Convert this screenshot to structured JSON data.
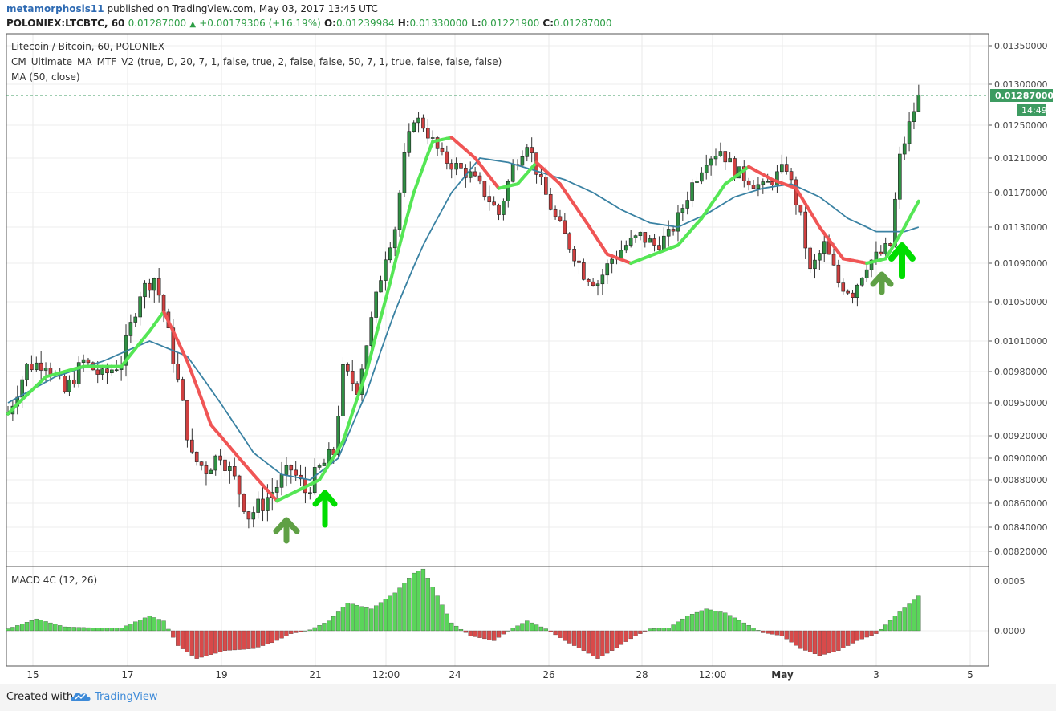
{
  "header": {
    "author": "metamorphosis11",
    "published_text": "published on TradingView.com, May 03, 2017 13:45 UTC",
    "symbol_line": "POLONIEX:LTCBTC, 60",
    "last_value": "0.01287000",
    "change": "+0.00179306 (+16.19%)",
    "open_label": "O:",
    "open_value": "0.01239984",
    "high_label": "H:",
    "high_value": "0.01330000",
    "low_label": "L:",
    "low_value": "0.01221900",
    "close_label": "C:",
    "close_value": "0.01287000"
  },
  "legend": {
    "line1": "Litecoin / Bitcoin, 60, POLONIEX",
    "line2": "CM_Ultimate_MA_MTF_V2 (true, D, 20, 7, 1, false, true, 2, false, false, 50, 7, 1, true, false, false, false)",
    "line3": "MA (50, close)"
  },
  "macd_label": "MACD 4C (12, 26)",
  "price_tag": {
    "value": "0.01287000",
    "countdown": "14:49"
  },
  "footer": {
    "created_with": "Created with",
    "brand": "TradingView"
  },
  "colors": {
    "bull_candle": "#2f8f43",
    "bear_candle": "#d04040",
    "ma_up": "#55e655",
    "ma_down": "#f05555",
    "ma50": "#3a82a3",
    "macd_pos": "#5ad55a",
    "macd_neg": "#d84a4a",
    "arrow_light": "#00dd00",
    "arrow_dark": "#5fa045",
    "price_tag_bg": "#3d9b61"
  },
  "chart_data": {
    "type": "candlestick",
    "xaxis_ticks": [
      "15",
      "17",
      "19",
      "21",
      "12:00",
      "24",
      "26",
      "28",
      "12:00",
      "May",
      "3",
      "5"
    ],
    "price_axis_ticks": [
      "0.01350000",
      "0.01300000",
      "0.01250000",
      "0.01210000",
      "0.01170000",
      "0.01130000",
      "0.01090000",
      "0.01050000",
      "0.01010000",
      "0.00980000",
      "0.00950000",
      "0.00920000",
      "0.00900000",
      "0.00880000",
      "0.00860000",
      "0.00840000",
      "0.00820000"
    ],
    "macd_axis_ticks": [
      "0.0005",
      "0.0000"
    ],
    "price_path": [
      [
        0,
        0.0094
      ],
      [
        4,
        0.00985
      ],
      [
        8,
        0.0099
      ],
      [
        12,
        0.0096
      ],
      [
        16,
        0.0099
      ],
      [
        20,
        0.00975
      ],
      [
        24,
        0.0099
      ],
      [
        28,
        0.0106
      ],
      [
        31,
        0.01075
      ],
      [
        33,
        0.0104
      ],
      [
        36,
        0.0097
      ],
      [
        39,
        0.009
      ],
      [
        42,
        0.0089
      ],
      [
        45,
        0.00905
      ],
      [
        48,
        0.0088
      ],
      [
        51,
        0.0085
      ],
      [
        54,
        0.0086
      ],
      [
        57,
        0.00875
      ],
      [
        60,
        0.0089
      ],
      [
        63,
        0.0087
      ],
      [
        66,
        0.0089
      ],
      [
        69,
        0.00905
      ],
      [
        71,
        0.0098
      ],
      [
        74,
        0.00965
      ],
      [
        77,
        0.0103
      ],
      [
        80,
        0.011
      ],
      [
        82,
        0.0113
      ],
      [
        84,
        0.0121
      ],
      [
        86,
        0.0126
      ],
      [
        88,
        0.0125
      ],
      [
        90,
        0.0123
      ],
      [
        92,
        0.0121
      ],
      [
        95,
        0.012
      ],
      [
        98,
        0.0119
      ],
      [
        101,
        0.0117
      ],
      [
        104,
        0.01145
      ],
      [
        107,
        0.012
      ],
      [
        110,
        0.0123
      ],
      [
        113,
        0.0118
      ],
      [
        116,
        0.0114
      ],
      [
        119,
        0.0111
      ],
      [
        122,
        0.0108
      ],
      [
        125,
        0.0107
      ],
      [
        128,
        0.01095
      ],
      [
        131,
        0.0111
      ],
      [
        134,
        0.0112
      ],
      [
        137,
        0.0111
      ],
      [
        140,
        0.0112
      ],
      [
        142,
        0.0114
      ],
      [
        145,
        0.0118
      ],
      [
        148,
        0.0121
      ],
      [
        151,
        0.0122
      ],
      [
        154,
        0.01195
      ],
      [
        157,
        0.01185
      ],
      [
        160,
        0.01175
      ],
      [
        163,
        0.0119
      ],
      [
        165,
        0.012
      ],
      [
        168,
        0.0114
      ],
      [
        170,
        0.0108
      ],
      [
        173,
        0.0111
      ],
      [
        176,
        0.0107
      ],
      [
        179,
        0.0106
      ],
      [
        182,
        0.0109
      ],
      [
        185,
        0.011
      ],
      [
        187,
        0.0111
      ],
      [
        189,
        0.0121
      ],
      [
        191,
        0.0125
      ],
      [
        193,
        0.01287
      ]
    ],
    "ma50_path": [
      [
        0,
        0.0095
      ],
      [
        10,
        0.00975
      ],
      [
        20,
        0.0099
      ],
      [
        30,
        0.0101
      ],
      [
        38,
        0.00995
      ],
      [
        45,
        0.0095
      ],
      [
        52,
        0.00905
      ],
      [
        58,
        0.00885
      ],
      [
        64,
        0.0088
      ],
      [
        70,
        0.009
      ],
      [
        76,
        0.0096
      ],
      [
        82,
        0.0104
      ],
      [
        88,
        0.0111
      ],
      [
        94,
        0.0117
      ],
      [
        100,
        0.0121
      ],
      [
        106,
        0.01205
      ],
      [
        112,
        0.01195
      ],
      [
        118,
        0.01185
      ],
      [
        124,
        0.0117
      ],
      [
        130,
        0.0115
      ],
      [
        136,
        0.01135
      ],
      [
        142,
        0.0113
      ],
      [
        148,
        0.01145
      ],
      [
        154,
        0.01165
      ],
      [
        160,
        0.01175
      ],
      [
        166,
        0.0118
      ],
      [
        172,
        0.01165
      ],
      [
        178,
        0.0114
      ],
      [
        184,
        0.01125
      ],
      [
        190,
        0.01125
      ],
      [
        193,
        0.0113
      ]
    ],
    "ma_fast_path": [
      [
        0,
        0.0094
      ],
      [
        8,
        0.00975
      ],
      [
        16,
        0.00985
      ],
      [
        24,
        0.00985
      ],
      [
        30,
        0.0102
      ],
      [
        33,
        0.0104
      ],
      [
        38,
        0.0099
      ],
      [
        43,
        0.0093
      ],
      [
        48,
        0.00905
      ],
      [
        53,
        0.0088
      ],
      [
        57,
        0.00862
      ],
      [
        61,
        0.0087
      ],
      [
        66,
        0.0088
      ],
      [
        71,
        0.00915
      ],
      [
        76,
        0.0098
      ],
      [
        81,
        0.0107
      ],
      [
        86,
        0.0117
      ],
      [
        90,
        0.0123
      ],
      [
        94,
        0.01235
      ],
      [
        99,
        0.0121
      ],
      [
        104,
        0.01175
      ],
      [
        108,
        0.0118
      ],
      [
        112,
        0.01205
      ],
      [
        117,
        0.0118
      ],
      [
        122,
        0.0114
      ],
      [
        127,
        0.011
      ],
      [
        132,
        0.0109
      ],
      [
        137,
        0.011
      ],
      [
        142,
        0.0111
      ],
      [
        147,
        0.0114
      ],
      [
        152,
        0.0118
      ],
      [
        157,
        0.012
      ],
      [
        162,
        0.01185
      ],
      [
        167,
        0.01175
      ],
      [
        172,
        0.0113
      ],
      [
        177,
        0.01095
      ],
      [
        182,
        0.0109
      ],
      [
        186,
        0.01095
      ],
      [
        190,
        0.0113
      ],
      [
        193,
        0.0116
      ]
    ],
    "macd_path": [
      [
        0,
        2e-05
      ],
      [
        6,
        0.00012
      ],
      [
        12,
        4e-05
      ],
      [
        18,
        3e-05
      ],
      [
        24,
        3e-05
      ],
      [
        30,
        0.00015
      ],
      [
        33,
        0.0001
      ],
      [
        36,
        -0.00015
      ],
      [
        40,
        -0.00028
      ],
      [
        46,
        -0.0002
      ],
      [
        52,
        -0.00018
      ],
      [
        56,
        -0.00012
      ],
      [
        60,
        -3e-05
      ],
      [
        64,
        1e-05
      ],
      [
        68,
        0.0001
      ],
      [
        72,
        0.00028
      ],
      [
        77,
        0.00022
      ],
      [
        82,
        0.00038
      ],
      [
        86,
        0.00058
      ],
      [
        88,
        0.00062
      ],
      [
        91,
        0.00035
      ],
      [
        94,
        8e-05
      ],
      [
        98,
        -5e-05
      ],
      [
        103,
        -0.0001
      ],
      [
        106,
        0.0
      ],
      [
        110,
        0.0001
      ],
      [
        114,
        2e-05
      ],
      [
        118,
        -0.0001
      ],
      [
        122,
        -0.0002
      ],
      [
        125,
        -0.00028
      ],
      [
        128,
        -0.0002
      ],
      [
        132,
        -8e-05
      ],
      [
        136,
        2e-05
      ],
      [
        140,
        3e-05
      ],
      [
        144,
        0.00015
      ],
      [
        148,
        0.00022
      ],
      [
        152,
        0.00018
      ],
      [
        156,
        8e-05
      ],
      [
        160,
        -2e-05
      ],
      [
        164,
        -5e-05
      ],
      [
        168,
        -0.00018
      ],
      [
        172,
        -0.00025
      ],
      [
        176,
        -0.0002
      ],
      [
        180,
        -0.0001
      ],
      [
        184,
        -3e-05
      ],
      [
        188,
        0.00015
      ],
      [
        193,
        0.00035
      ]
    ]
  }
}
